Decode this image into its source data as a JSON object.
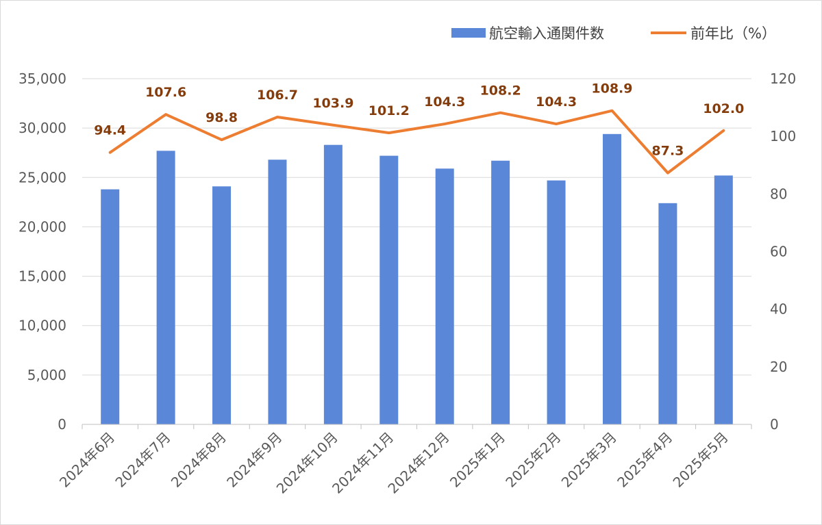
{
  "chart_data": {
    "type": "bar",
    "categories": [
      "2024年6月",
      "2024年7月",
      "2024年8月",
      "2024年9月",
      "2024年10月",
      "2024年11月",
      "2024年12月",
      "2025年1月",
      "2025年2月",
      "2025年3月",
      "2025年4月",
      "2025年5月"
    ],
    "series": [
      {
        "name": "航空輸入通関件数",
        "type": "bar",
        "axis": "left",
        "color": "#5b87d8",
        "values": [
          23800,
          27700,
          24100,
          26800,
          28300,
          27200,
          25900,
          26700,
          24700,
          29400,
          22400,
          25200
        ]
      },
      {
        "name": "前年比（%）",
        "type": "line",
        "axis": "right",
        "color": "#ed7d31",
        "values": [
          94.4,
          107.6,
          98.8,
          106.7,
          103.9,
          101.2,
          104.3,
          108.2,
          104.3,
          108.9,
          87.3,
          102.0
        ]
      }
    ],
    "data_labels": [
      "94.4",
      "107.6",
      "98.8",
      "106.7",
      "103.9",
      "101.2",
      "104.3",
      "108.2",
      "104.3",
      "108.9",
      "87.3",
      "102.0"
    ],
    "y_left": {
      "ylim": [
        0,
        35000
      ],
      "ticks": [
        "0",
        "5,000",
        "10,000",
        "15,000",
        "20,000",
        "25,000",
        "30,000",
        "35,000"
      ]
    },
    "y_right": {
      "ylim": [
        0,
        120
      ],
      "ticks": [
        "0",
        "20",
        "40",
        "60",
        "80",
        "100",
        "120"
      ]
    },
    "grid": true,
    "legend_position": "top-right",
    "title": "",
    "xlabel": "",
    "ylabel": ""
  }
}
